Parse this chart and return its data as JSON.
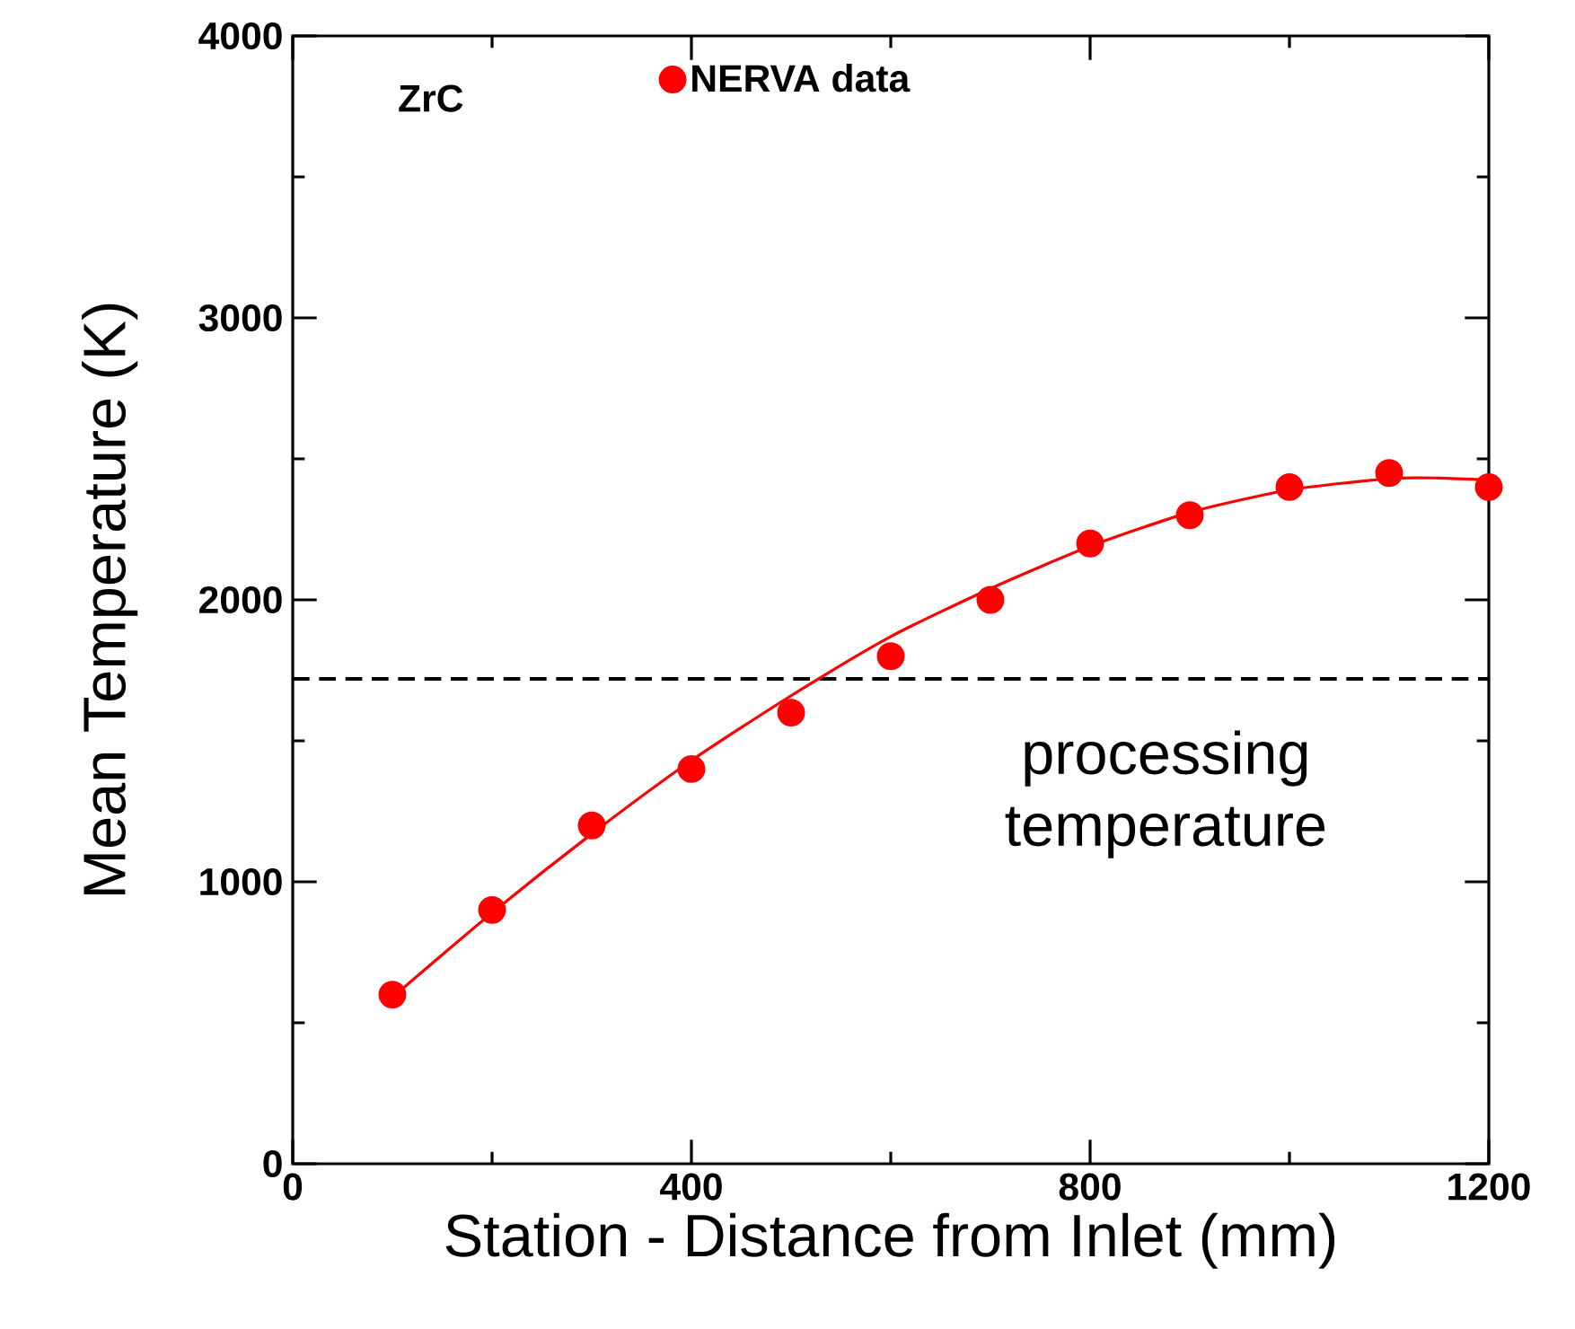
{
  "chart_data": {
    "type": "scatter",
    "xlabel": "Station - Distance from Inlet (mm)",
    "ylabel": "Mean Temperature (K)",
    "xlim": [
      0,
      1200
    ],
    "ylim": [
      0,
      4000
    ],
    "xticks": [
      0,
      400,
      800,
      1200
    ],
    "yticks": [
      0,
      1000,
      2000,
      3000,
      4000
    ],
    "legend": "top",
    "marker": "circle",
    "grid": false,
    "series": [
      {
        "name": "NERVA data",
        "color": "#ff0000",
        "x": [
          100,
          200,
          300,
          400,
          500,
          600,
          700,
          800,
          900,
          1000,
          1100,
          1200
        ],
        "values": [
          600,
          900,
          1200,
          1400,
          1600,
          1800,
          2000,
          2200,
          2300,
          2400,
          2450,
          2400
        ]
      },
      {
        "type": "line",
        "color": "#ff0000",
        "marker": "none",
        "x": [
          100,
          200,
          300,
          400,
          500,
          600,
          700,
          800,
          900,
          1000,
          1100,
          1150,
          1200
        ],
        "values": [
          590,
          890,
          1170,
          1430,
          1660,
          1870,
          2040,
          2190,
          2310,
          2390,
          2430,
          2432,
          2425
        ]
      }
    ],
    "ref_lines": [
      {
        "axis": "y",
        "value": 1720,
        "label": "processing temperature",
        "color": "#000000",
        "line_style": "dashed"
      }
    ],
    "annotations": [
      "ZrC"
    ]
  }
}
